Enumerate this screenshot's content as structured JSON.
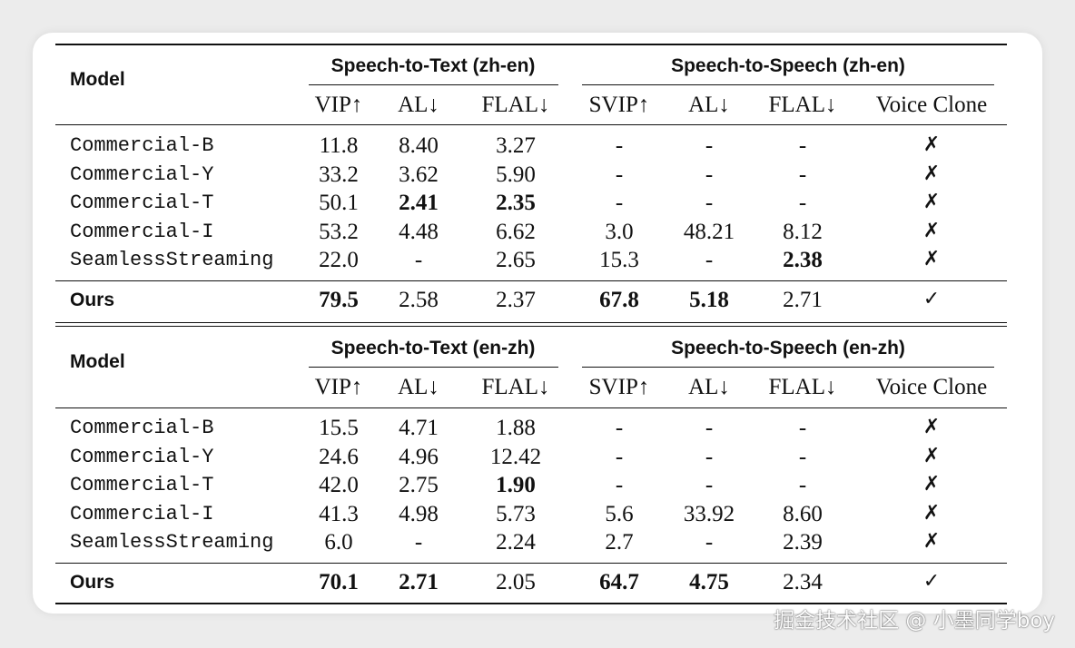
{
  "tables": [
    {
      "model_header": "Model",
      "group_s2t": "Speech-to-Text (zh-en)",
      "group_s2s": "Speech-to-Speech (zh-en)",
      "columns": [
        "VIP↑",
        "AL↓",
        "FLAL↓",
        "SVIP↑",
        "AL↓",
        "FLAL↓",
        "Voice Clone"
      ],
      "rows": [
        {
          "model": "Commercial-B",
          "values": [
            "11.8",
            "8.40",
            "3.27",
            "-",
            "-",
            "-",
            "✗"
          ],
          "bold": []
        },
        {
          "model": "Commercial-Y",
          "values": [
            "33.2",
            "3.62",
            "5.90",
            "-",
            "-",
            "-",
            "✗"
          ],
          "bold": []
        },
        {
          "model": "Commercial-T",
          "values": [
            "50.1",
            "2.41",
            "2.35",
            "-",
            "-",
            "-",
            "✗"
          ],
          "bold": [
            1,
            2
          ]
        },
        {
          "model": "Commercial-I",
          "values": [
            "53.2",
            "4.48",
            "6.62",
            "3.0",
            "48.21",
            "8.12",
            "✗"
          ],
          "bold": []
        },
        {
          "model": "SeamlessStreaming",
          "values": [
            "22.0",
            "-",
            "2.65",
            "15.3",
            "-",
            "2.38",
            "✗"
          ],
          "bold": [
            5
          ]
        }
      ],
      "ours": {
        "model": "Ours",
        "values": [
          "79.5",
          "2.58",
          "2.37",
          "67.8",
          "5.18",
          "2.71",
          "✓"
        ],
        "bold": [
          0,
          3,
          4
        ]
      }
    },
    {
      "model_header": "Model",
      "group_s2t": "Speech-to-Text (en-zh)",
      "group_s2s": "Speech-to-Speech (en-zh)",
      "columns": [
        "VIP↑",
        "AL↓",
        "FLAL↓",
        "SVIP↑",
        "AL↓",
        "FLAL↓",
        "Voice Clone"
      ],
      "rows": [
        {
          "model": "Commercial-B",
          "values": [
            "15.5",
            "4.71",
            "1.88",
            "-",
            "-",
            "-",
            "✗"
          ],
          "bold": []
        },
        {
          "model": "Commercial-Y",
          "values": [
            "24.6",
            "4.96",
            "12.42",
            "-",
            "-",
            "-",
            "✗"
          ],
          "bold": []
        },
        {
          "model": "Commercial-T",
          "values": [
            "42.0",
            "2.75",
            "1.90",
            "-",
            "-",
            "-",
            "✗"
          ],
          "bold": [
            2
          ]
        },
        {
          "model": "Commercial-I",
          "values": [
            "41.3",
            "4.98",
            "5.73",
            "5.6",
            "33.92",
            "8.60",
            "✗"
          ],
          "bold": []
        },
        {
          "model": "SeamlessStreaming",
          "values": [
            "6.0",
            "-",
            "2.24",
            "2.7",
            "-",
            "2.39",
            "✗"
          ],
          "bold": []
        }
      ],
      "ours": {
        "model": "Ours",
        "values": [
          "70.1",
          "2.71",
          "2.05",
          "64.7",
          "4.75",
          "2.34",
          "✓"
        ],
        "bold": [
          0,
          1,
          3,
          4
        ]
      }
    }
  ],
  "watermark": "掘金技术社区 @ 小墨同学boy"
}
